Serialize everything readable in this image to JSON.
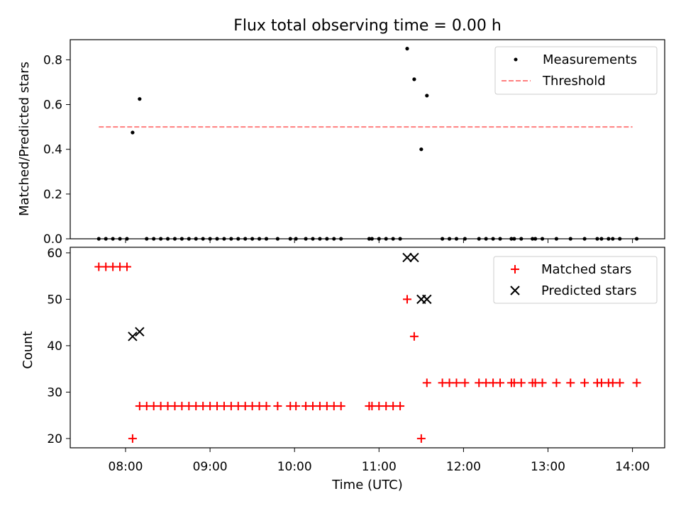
{
  "chart_data": [
    {
      "type": "scatter",
      "title": "Flux total observing time = 0.00 h",
      "ylabel": "Matched/Predicted stars",
      "xlabel": "",
      "ylim": [
        0,
        0.89
      ],
      "yticks": [
        0.0,
        0.2,
        0.4,
        0.6,
        0.8
      ],
      "ytick_labels": [
        "0.0",
        "0.2",
        "0.4",
        "0.6",
        "0.8"
      ],
      "xticks": [
        "08:00",
        "09:00",
        "10:00",
        "11:00",
        "12:00",
        "13:00",
        "14:00"
      ],
      "grid": false,
      "legend_position": "top-right",
      "legend": [
        "Measurements",
        "Threshold"
      ],
      "series": [
        {
          "name": "Measurements",
          "style": "dot",
          "color": "#000000",
          "points": [
            [
              "07:41",
              0
            ],
            [
              "07:46",
              0
            ],
            [
              "07:51",
              0
            ],
            [
              "07:56",
              0
            ],
            [
              "08:01",
              0
            ],
            [
              "08:05",
              0.475
            ],
            [
              "08:10",
              0.625
            ],
            [
              "08:15",
              0
            ],
            [
              "08:20",
              0
            ],
            [
              "08:25",
              0
            ],
            [
              "08:30",
              0
            ],
            [
              "08:35",
              0
            ],
            [
              "08:40",
              0
            ],
            [
              "08:45",
              0
            ],
            [
              "08:50",
              0
            ],
            [
              "08:55",
              0
            ],
            [
              "09:00",
              0
            ],
            [
              "09:05",
              0
            ],
            [
              "09:10",
              0
            ],
            [
              "09:15",
              0
            ],
            [
              "09:20",
              0
            ],
            [
              "09:25",
              0
            ],
            [
              "09:30",
              0
            ],
            [
              "09:35",
              0
            ],
            [
              "09:40",
              0
            ],
            [
              "09:48",
              0
            ],
            [
              "09:57",
              0
            ],
            [
              "10:01",
              0
            ],
            [
              "10:08",
              0
            ],
            [
              "10:13",
              0
            ],
            [
              "10:18",
              0
            ],
            [
              "10:23",
              0
            ],
            [
              "10:28",
              0
            ],
            [
              "10:33",
              0
            ],
            [
              "10:53",
              0
            ],
            [
              "10:55",
              0
            ],
            [
              "11:00",
              0
            ],
            [
              "11:05",
              0
            ],
            [
              "11:10",
              0
            ],
            [
              "11:15",
              0
            ],
            [
              "11:20",
              0.85
            ],
            [
              "11:25",
              0.713
            ],
            [
              "11:30",
              0.4
            ],
            [
              "11:34",
              0.64
            ],
            [
              "11:45",
              0
            ],
            [
              "11:50",
              0
            ],
            [
              "11:55",
              0
            ],
            [
              "12:01",
              0
            ],
            [
              "12:11",
              0
            ],
            [
              "12:16",
              0
            ],
            [
              "12:21",
              0
            ],
            [
              "12:26",
              0
            ],
            [
              "12:34",
              0
            ],
            [
              "12:36",
              0
            ],
            [
              "12:41",
              0
            ],
            [
              "12:49",
              0
            ],
            [
              "12:51",
              0
            ],
            [
              "12:56",
              0
            ],
            [
              "13:06",
              0
            ],
            [
              "13:16",
              0
            ],
            [
              "13:26",
              0
            ],
            [
              "13:35",
              0
            ],
            [
              "13:38",
              0
            ],
            [
              "13:43",
              0
            ],
            [
              "13:46",
              0
            ],
            [
              "13:51",
              0
            ],
            [
              "14:03",
              0
            ]
          ]
        },
        {
          "name": "Threshold",
          "style": "dashed-line",
          "color": "#ff7f7f",
          "points": [
            [
              "07:41",
              0.5
            ],
            [
              "14:00",
              0.5
            ]
          ]
        }
      ]
    },
    {
      "type": "scatter",
      "title": "",
      "ylabel": "Count",
      "xlabel": "Time (UTC)",
      "ylim": [
        18.0,
        61.2
      ],
      "yticks": [
        20,
        30,
        40,
        50,
        60
      ],
      "ytick_labels": [
        "20",
        "30",
        "40",
        "50",
        "60"
      ],
      "xticks": [
        "08:00",
        "09:00",
        "10:00",
        "11:00",
        "12:00",
        "13:00",
        "14:00"
      ],
      "grid": false,
      "legend_position": "top-right",
      "legend": [
        "Matched stars",
        "Predicted stars"
      ],
      "series": [
        {
          "name": "Matched stars",
          "marker": "plus",
          "color": "#ff0000",
          "points": [
            [
              "07:41",
              57
            ],
            [
              "07:46",
              57
            ],
            [
              "07:51",
              57
            ],
            [
              "07:56",
              57
            ],
            [
              "08:01",
              57
            ],
            [
              "08:05",
              20
            ],
            [
              "08:10",
              27
            ],
            [
              "08:15",
              27
            ],
            [
              "08:20",
              27
            ],
            [
              "08:25",
              27
            ],
            [
              "08:30",
              27
            ],
            [
              "08:35",
              27
            ],
            [
              "08:40",
              27
            ],
            [
              "08:45",
              27
            ],
            [
              "08:50",
              27
            ],
            [
              "08:55",
              27
            ],
            [
              "09:00",
              27
            ],
            [
              "09:05",
              27
            ],
            [
              "09:10",
              27
            ],
            [
              "09:15",
              27
            ],
            [
              "09:20",
              27
            ],
            [
              "09:25",
              27
            ],
            [
              "09:30",
              27
            ],
            [
              "09:35",
              27
            ],
            [
              "09:40",
              27
            ],
            [
              "09:48",
              27
            ],
            [
              "09:57",
              27
            ],
            [
              "10:01",
              27
            ],
            [
              "10:08",
              27
            ],
            [
              "10:13",
              27
            ],
            [
              "10:18",
              27
            ],
            [
              "10:23",
              27
            ],
            [
              "10:28",
              27
            ],
            [
              "10:33",
              27
            ],
            [
              "10:53",
              27
            ],
            [
              "10:55",
              27
            ],
            [
              "11:00",
              27
            ],
            [
              "11:05",
              27
            ],
            [
              "11:10",
              27
            ],
            [
              "11:15",
              27
            ],
            [
              "11:20",
              50
            ],
            [
              "11:25",
              42
            ],
            [
              "11:30",
              20
            ],
            [
              "11:34",
              32
            ],
            [
              "11:45",
              32
            ],
            [
              "11:50",
              32
            ],
            [
              "11:55",
              32
            ],
            [
              "12:01",
              32
            ],
            [
              "12:11",
              32
            ],
            [
              "12:16",
              32
            ],
            [
              "12:21",
              32
            ],
            [
              "12:26",
              32
            ],
            [
              "12:34",
              32
            ],
            [
              "12:36",
              32
            ],
            [
              "12:41",
              32
            ],
            [
              "12:49",
              32
            ],
            [
              "12:51",
              32
            ],
            [
              "12:56",
              32
            ],
            [
              "13:06",
              32
            ],
            [
              "13:16",
              32
            ],
            [
              "13:26",
              32
            ],
            [
              "13:35",
              32
            ],
            [
              "13:38",
              32
            ],
            [
              "13:43",
              32
            ],
            [
              "13:46",
              32
            ],
            [
              "13:51",
              32
            ],
            [
              "14:03",
              32
            ]
          ]
        },
        {
          "name": "Predicted stars",
          "marker": "x",
          "color": "#000000",
          "points": [
            [
              "08:05",
              42
            ],
            [
              "08:10",
              43
            ],
            [
              "11:20",
              59
            ],
            [
              "11:25",
              59
            ],
            [
              "11:30",
              50
            ],
            [
              "11:34",
              50
            ]
          ]
        }
      ]
    }
  ]
}
